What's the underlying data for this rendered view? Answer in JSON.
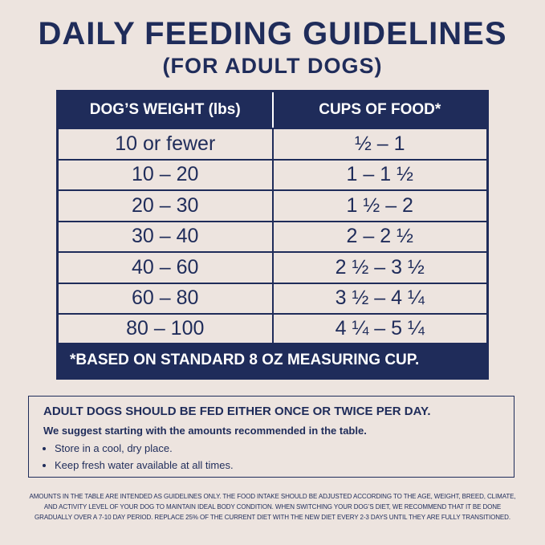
{
  "header": {
    "title": "DAILY FEEDING GUIDELINES",
    "subtitle": "(FOR ADULT DOGS)"
  },
  "table": {
    "columns": [
      "DOG’S WEIGHT (lbs)",
      "CUPS OF FOOD*"
    ],
    "rows": [
      [
        "10 or fewer",
        "½ – 1"
      ],
      [
        "10 – 20",
        "1 – 1 ½"
      ],
      [
        "20 – 30",
        "1 ½ – 2"
      ],
      [
        "30 – 40",
        "2 – 2 ½"
      ],
      [
        "40 – 60",
        "2 ½ – 3 ½"
      ],
      [
        "60 – 80",
        "3 ½ – 4 ¼"
      ],
      [
        "80 – 100",
        "4 ¼ – 5 ¼"
      ]
    ],
    "footnote": "*BASED ON STANDARD 8 OZ MEASURING CUP."
  },
  "info": {
    "heading": "ADULT DOGS SHOULD BE FED EITHER ONCE OR TWICE PER DAY.",
    "text": "We suggest starting with the amounts recommended in the table.",
    "bullets": [
      "Store in a cool, dry place.",
      "Keep fresh water available at all times."
    ]
  },
  "fine_print": "AMOUNTS IN THE TABLE ARE INTENDED AS GUIDELINES ONLY. THE FOOD INTAKE SHOULD BE ADJUSTED ACCORDING TO THE AGE, WEIGHT, BREED, CLIMATE, AND ACTIVITY LEVEL OF YOUR DOG TO MAINTAIN IDEAL BODY CONDITION. WHEN SWITCHING YOUR DOG’S DIET, WE RECOMMEND THAT IT BE DONE GRADUALLY OVER A 7-10 DAY PERIOD. REPLACE 25% OF THE CURRENT DIET WITH THE NEW DIET EVERY 2-3 DAYS UNTIL THEY ARE FULLY TRANSITIONED."
}
